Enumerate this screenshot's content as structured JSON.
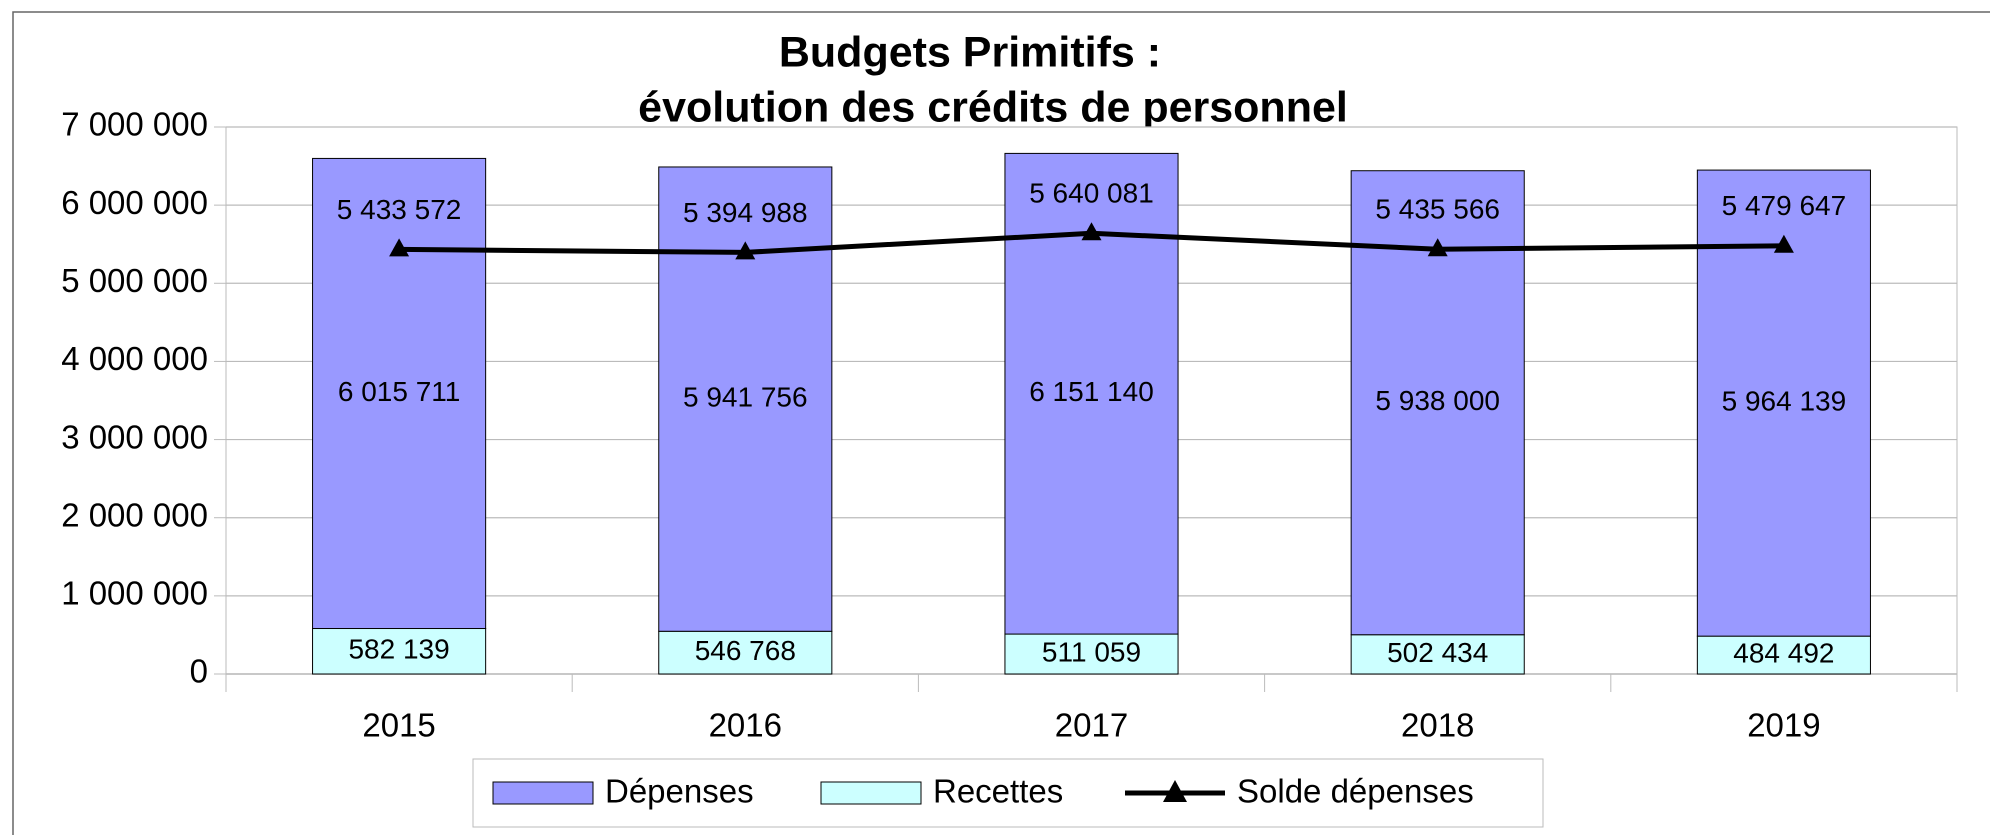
{
  "chart_data": {
    "type": "bar",
    "stacked": true,
    "title": "Budgets Primitifs :",
    "subtitle": "évolution des crédits de personnel",
    "categories": [
      "2015",
      "2016",
      "2017",
      "2018",
      "2019"
    ],
    "series": [
      {
        "name": "Dépenses",
        "type": "bar",
        "color": "#9999ff",
        "values": [
          6015711,
          5941756,
          6151140,
          5938000,
          5964139
        ],
        "value_labels": [
          "6 015 711",
          "5 941 756",
          "6 151 140",
          "5 938 000",
          "5 964 139"
        ]
      },
      {
        "name": "Recettes",
        "type": "bar",
        "color": "#ccffff",
        "values": [
          582139,
          546768,
          511059,
          502434,
          484492
        ],
        "value_labels": [
          "582 139",
          "546 768",
          "511 059",
          "502 434",
          "484 492"
        ]
      },
      {
        "name": "Solde dépenses",
        "type": "line",
        "color": "#000000",
        "values": [
          5433572,
          5394988,
          5640081,
          5435566,
          5479647
        ],
        "value_labels": [
          "5 433 572",
          "5 394 988",
          "5 640 081",
          "5 435 566",
          "5 479 647"
        ]
      }
    ],
    "ylim": [
      0,
      7000000
    ],
    "yticks": [
      0,
      {
        "value": 1000000,
        "label": "1 000 000"
      },
      {
        "value": 2000000,
        "label": "2 000 000"
      },
      {
        "value": 3000000,
        "label": "3 000 000"
      },
      {
        "value": 4000000,
        "label": "4 000 000"
      },
      {
        "value": 5000000,
        "label": "5 000 000"
      },
      {
        "value": 6000000,
        "label": "6 000 000"
      },
      {
        "value": 7000000,
        "label": "7 000 000"
      }
    ],
    "grid": true,
    "legend": "bottom"
  }
}
